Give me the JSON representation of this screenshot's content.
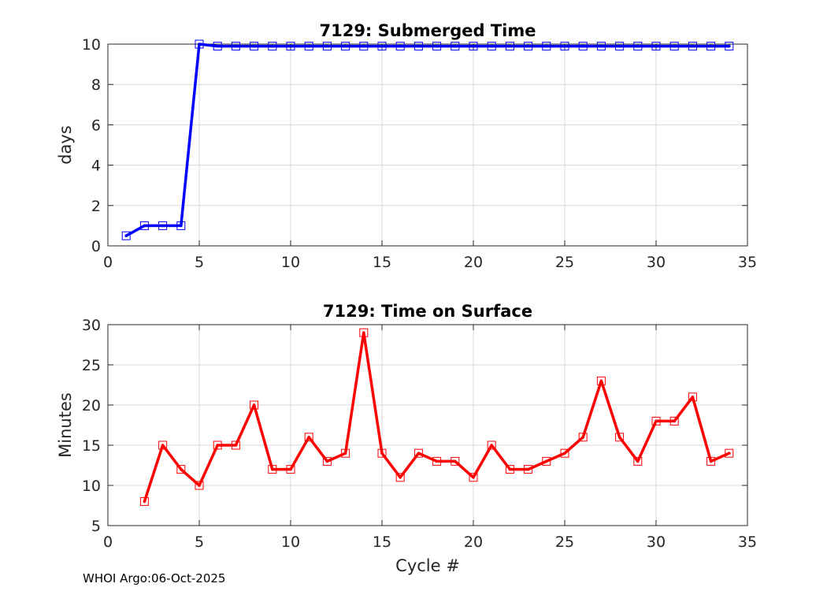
{
  "chart_data": [
    {
      "type": "line",
      "title": "7129: Submerged Time",
      "xlabel": "",
      "ylabel": "days",
      "xlim": [
        0,
        35
      ],
      "ylim": [
        0,
        10
      ],
      "xticks": [
        0,
        5,
        10,
        15,
        20,
        25,
        30,
        35
      ],
      "yticks": [
        0,
        2,
        4,
        6,
        8,
        10
      ],
      "grid": true,
      "color": "#0000ff",
      "marker": "square",
      "series": [
        {
          "name": "Submerged Time",
          "x": [
            1,
            2,
            3,
            4,
            5,
            6,
            7,
            8,
            9,
            10,
            11,
            12,
            13,
            14,
            15,
            16,
            17,
            18,
            19,
            20,
            21,
            22,
            23,
            24,
            25,
            26,
            27,
            28,
            29,
            30,
            31,
            32,
            33,
            34
          ],
          "y": [
            0.5,
            1.0,
            1.0,
            1.0,
            10.0,
            9.9,
            9.9,
            9.9,
            9.9,
            9.9,
            9.9,
            9.9,
            9.9,
            9.9,
            9.9,
            9.9,
            9.9,
            9.9,
            9.9,
            9.9,
            9.9,
            9.9,
            9.9,
            9.9,
            9.9,
            9.9,
            9.9,
            9.9,
            9.9,
            9.9,
            9.9,
            9.9,
            9.9,
            9.9
          ]
        }
      ]
    },
    {
      "type": "line",
      "title": "7129: Time on Surface",
      "xlabel": "Cycle #",
      "ylabel": "Minutes",
      "xlim": [
        0,
        35
      ],
      "ylim": [
        5,
        30
      ],
      "xticks": [
        0,
        5,
        10,
        15,
        20,
        25,
        30,
        35
      ],
      "yticks": [
        5,
        10,
        15,
        20,
        25,
        30
      ],
      "grid": true,
      "color": "#ff0000",
      "marker": "square",
      "series": [
        {
          "name": "Time on Surface",
          "x": [
            2,
            3,
            4,
            5,
            6,
            7,
            8,
            9,
            10,
            11,
            12,
            13,
            14,
            15,
            16,
            17,
            18,
            19,
            20,
            21,
            22,
            23,
            24,
            25,
            26,
            27,
            28,
            29,
            30,
            31,
            32,
            33,
            34
          ],
          "y": [
            8,
            15,
            12,
            10,
            15,
            15,
            20,
            12,
            12,
            16,
            13,
            14,
            29,
            14,
            11,
            14,
            13,
            13,
            11,
            15,
            12,
            12,
            13,
            14,
            16,
            23,
            16,
            13,
            18,
            18,
            21,
            13,
            14
          ]
        }
      ]
    }
  ],
  "footer": {
    "text": "WHOI Argo:06-Oct-2025"
  }
}
